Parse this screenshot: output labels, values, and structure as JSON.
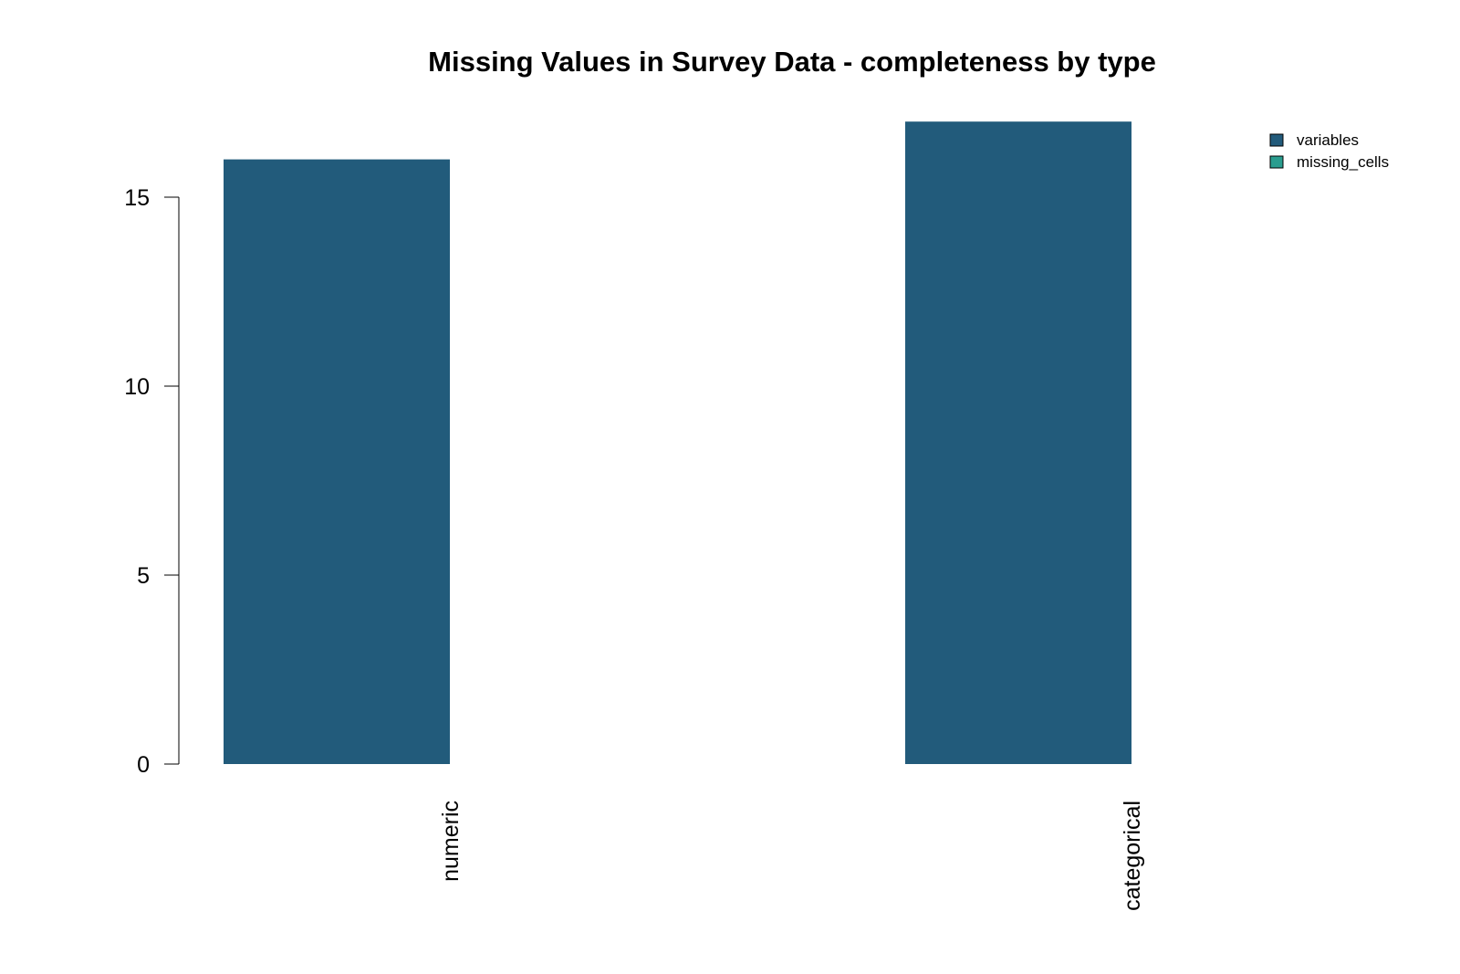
{
  "chart_data": {
    "type": "bar",
    "title": "Missing Values in Survey Data - completeness by type",
    "categories": [
      "numeric",
      "categorical"
    ],
    "series": [
      {
        "name": "variables",
        "color": "#225b7b",
        "values": [
          16,
          17
        ]
      },
      {
        "name": "missing_cells",
        "color": "#2a9d8f",
        "values": [
          0,
          0
        ]
      }
    ],
    "ylim": [
      0,
      17
    ],
    "yticks": [
      "0",
      "5",
      "10",
      "15"
    ],
    "grid": false,
    "legend_position": "top-right"
  }
}
